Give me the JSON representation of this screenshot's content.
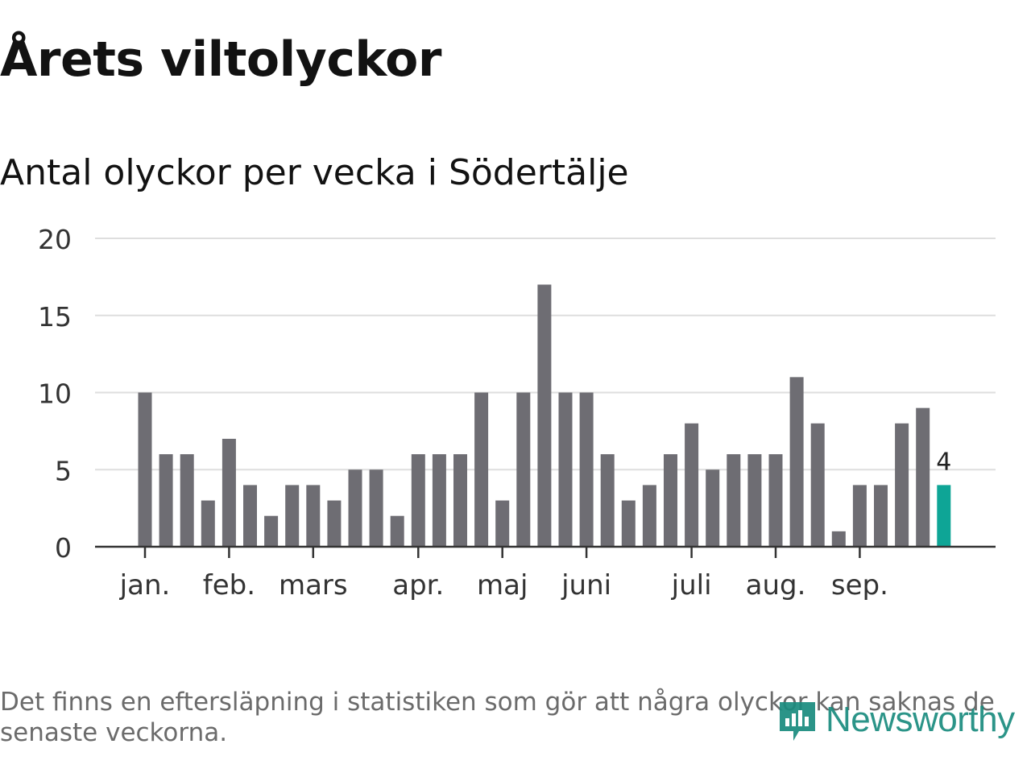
{
  "title": "Årets viltolyckor",
  "subtitle": "Antal olyckor per vecka i Södertälje",
  "footnote": "Det finns en eftersläpning i statistiken som gör att några olyckor kan saknas de senaste veckorna.",
  "brand": "Newsworthy",
  "colors": {
    "bar": "#6e6d73",
    "highlight": "#0ea596",
    "grid": "#dedede",
    "axis": "#333333",
    "label": "#333333",
    "title": "#121212",
    "brand": "#1a8b7e"
  },
  "chart_data": {
    "type": "bar",
    "title": "Antal olyckor per vecka i Södertälje",
    "xlabel": "",
    "ylabel": "",
    "ylim": [
      0,
      20
    ],
    "yticks": [
      0,
      5,
      10,
      15,
      20
    ],
    "grid": true,
    "values": [
      10,
      6,
      6,
      3,
      7,
      4,
      2,
      4,
      4,
      3,
      5,
      5,
      2,
      6,
      6,
      6,
      10,
      3,
      10,
      17,
      10,
      10,
      6,
      3,
      4,
      6,
      8,
      5,
      6,
      6,
      6,
      11,
      8,
      1,
      4,
      4,
      8,
      9,
      4
    ],
    "highlight_index": 38,
    "highlight_label": "4",
    "month_ticks": [
      {
        "label": "jan.",
        "week_index": 0
      },
      {
        "label": "feb.",
        "week_index": 4
      },
      {
        "label": "mars",
        "week_index": 8
      },
      {
        "label": "apr.",
        "week_index": 13
      },
      {
        "label": "maj",
        "week_index": 17
      },
      {
        "label": "juni",
        "week_index": 21
      },
      {
        "label": "juli",
        "week_index": 26
      },
      {
        "label": "aug.",
        "week_index": 30
      },
      {
        "label": "sep.",
        "week_index": 34
      }
    ]
  }
}
